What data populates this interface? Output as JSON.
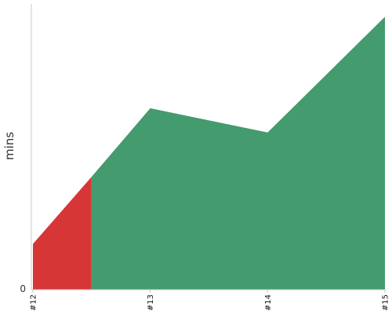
{
  "chart_data": {
    "type": "area",
    "ylabel": "mins",
    "xlabel": "",
    "title": "",
    "x_ticks": [
      "#12",
      "#13",
      "#14",
      "#15"
    ],
    "y_ticks": [
      "0"
    ],
    "ylim": [
      0,
      100
    ],
    "series": [
      {
        "status": "failed",
        "color": "#d73637",
        "points": [
          {
            "x": 12,
            "y": 16
          },
          {
            "x": 12.5,
            "y": 39.5
          }
        ]
      },
      {
        "status": "passed",
        "color": "#449b6d",
        "points": [
          {
            "x": 12.5,
            "y": 39.5
          },
          {
            "x": 13,
            "y": 63.5
          },
          {
            "x": 14,
            "y": 55
          },
          {
            "x": 15,
            "y": 95.5
          }
        ]
      }
    ]
  }
}
